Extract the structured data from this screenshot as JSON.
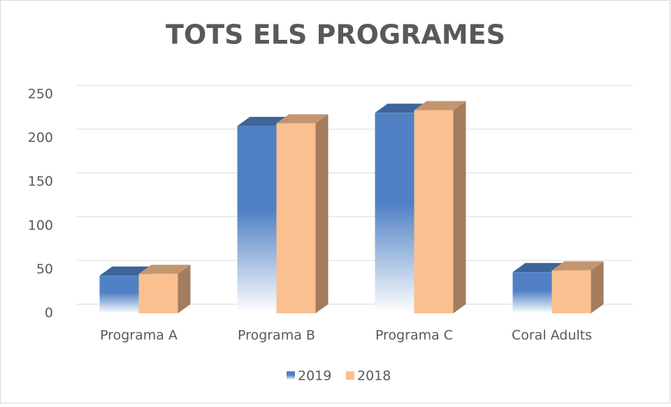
{
  "chart_data": {
    "type": "bar3d",
    "title": "TOTS ELS PROGRAMES",
    "categories": [
      "Programa A",
      "Programa B",
      "Programa C",
      "Coral Adults"
    ],
    "series": [
      {
        "name": "2019",
        "color": "#4f81c4",
        "values": [
          43,
          214,
          229,
          47
        ]
      },
      {
        "name": "2018",
        "color": "#fac090",
        "values": [
          45,
          217,
          232,
          49
        ]
      }
    ],
    "ylim": [
      0,
      250
    ],
    "yticks": [
      0,
      50,
      100,
      150,
      200,
      250
    ],
    "grid": true,
    "legend": "bottom"
  }
}
